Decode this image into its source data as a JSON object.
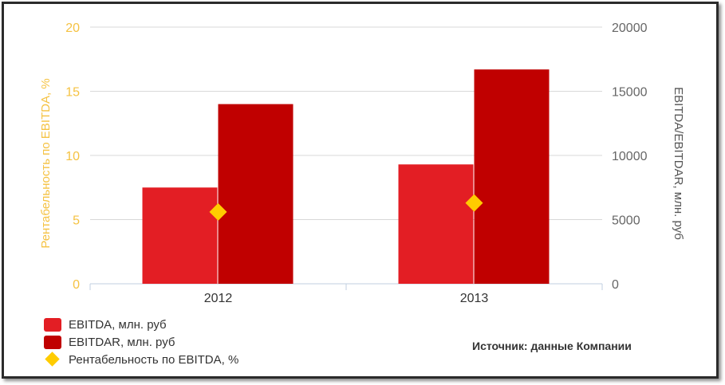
{
  "chart_data": {
    "type": "bar",
    "categories": [
      "2012",
      "2013"
    ],
    "series": [
      {
        "name": "EBITDA, млн. руб",
        "axis": "right",
        "kind": "bar",
        "color": "#e31e24",
        "values": [
          7500,
          9300
        ]
      },
      {
        "name": "EBITDAR, млн. руб",
        "axis": "right",
        "kind": "bar",
        "color": "#c00000",
        "values": [
          14000,
          16700
        ]
      },
      {
        "name": "Рентабельность по EBITDA, %",
        "axis": "left",
        "kind": "point",
        "color": "#ffcc00",
        "values": [
          5.6,
          6.3
        ]
      }
    ],
    "y_left": {
      "label": "Рентабельность по EBITDA, %",
      "range": [
        0,
        20
      ],
      "ticks": [
        0,
        5,
        10,
        15,
        20
      ],
      "color": "#f5c242"
    },
    "y_right": {
      "label": "EBITDA/EBITDAR, млн. руб",
      "range": [
        0,
        20000
      ],
      "ticks": [
        0,
        5000,
        10000,
        15000,
        20000
      ],
      "color": "#666666"
    },
    "grid": true,
    "legend_position": "bottom-left"
  },
  "source_text": "Источник: данные Компании"
}
